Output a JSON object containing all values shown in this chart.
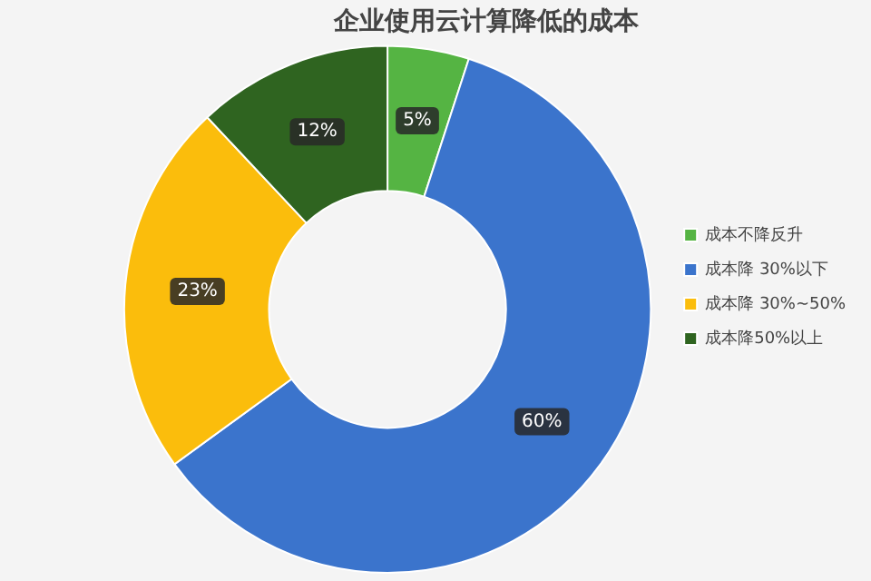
{
  "chart_data": {
    "type": "donut",
    "title": "企业使用云计算降低的成本",
    "categories": [
      "成本不降反升",
      "成本降 30%以下",
      "成本降 30%~50%",
      "成本降50%以上"
    ],
    "values": [
      5,
      60,
      23,
      12
    ],
    "colors": [
      "#55b443",
      "#3b74cc",
      "#fbbd0c",
      "#2f6420"
    ],
    "value_labels": [
      "5%",
      "60%",
      "23%",
      "12%"
    ],
    "legend": "right"
  }
}
